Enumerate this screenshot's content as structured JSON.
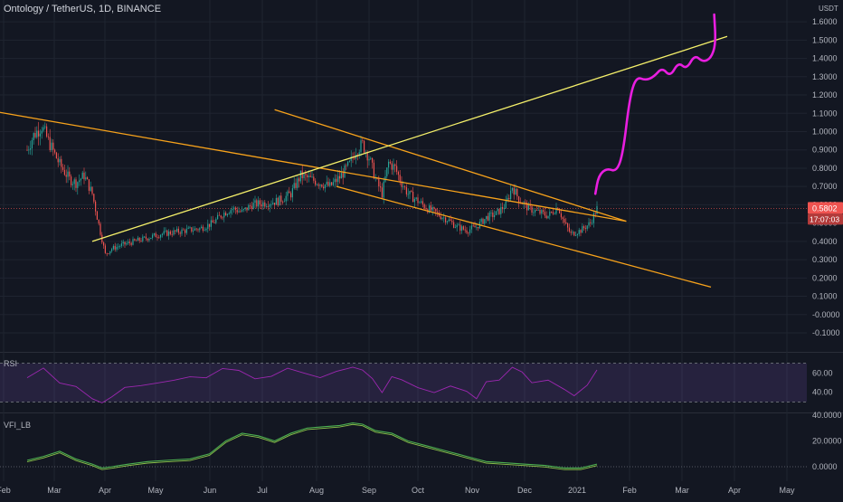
{
  "title": "Ontology / TetherUS, 1D, BINANCE",
  "currency": "USDT",
  "colors": {
    "background": "#131722",
    "grid": "#1f2430",
    "up_candle": "#26a69a",
    "down_candle": "#ef5350",
    "trend_yellow": "#f5f06a",
    "trend_orange": "#f7a21b",
    "projection": "#e91ee0",
    "rsi_band": "#7e57c2",
    "rsi_line": "#9c27b0",
    "vfi_line": "#4caf50",
    "vfi_signal": "#8bc34a",
    "price_badge": "#ef5350"
  },
  "price_badge": {
    "value": "0.5802",
    "countdown": "17:07:03"
  },
  "indicators": {
    "rsi_label": "RSI",
    "vfi_label": "VFI_LB"
  },
  "chart_data": [
    {
      "type": "candlestick",
      "x_axis_labels": [
        "Feb",
        "Mar",
        "Apr",
        "May",
        "Jun",
        "Jul",
        "Aug",
        "Sep",
        "Oct",
        "Nov",
        "Dec",
        "2021",
        "Feb",
        "Mar",
        "Apr",
        "May"
      ],
      "y_ticks": [
        "-0.1000",
        "-0.0000",
        "0.1000",
        "0.2000",
        "0.3000",
        "0.4000",
        "0.5000",
        "0.6000",
        "0.7000",
        "0.8000",
        "0.9000",
        "1.0000",
        "1.1000",
        "1.2000",
        "1.3000",
        "1.4000",
        "1.5000",
        "1.6000"
      ],
      "ylim": [
        -0.1,
        1.65
      ],
      "price_path": [
        [
          0,
          0.9
        ],
        [
          4,
          0.98
        ],
        [
          9,
          1.03
        ],
        [
          14,
          0.93
        ],
        [
          20,
          0.82
        ],
        [
          26,
          0.74
        ],
        [
          30,
          0.72
        ],
        [
          35,
          0.76
        ],
        [
          40,
          0.66
        ],
        [
          45,
          0.45
        ],
        [
          48,
          0.33
        ],
        [
          52,
          0.36
        ],
        [
          58,
          0.38
        ],
        [
          66,
          0.4
        ],
        [
          74,
          0.42
        ],
        [
          82,
          0.44
        ],
        [
          90,
          0.45
        ],
        [
          98,
          0.46
        ],
        [
          106,
          0.47
        ],
        [
          114,
          0.5
        ],
        [
          120,
          0.55
        ],
        [
          126,
          0.58
        ],
        [
          132,
          0.56
        ],
        [
          138,
          0.6
        ],
        [
          146,
          0.61
        ],
        [
          154,
          0.62
        ],
        [
          162,
          0.66
        ],
        [
          168,
          0.76
        ],
        [
          174,
          0.74
        ],
        [
          180,
          0.72
        ],
        [
          186,
          0.7
        ],
        [
          192,
          0.75
        ],
        [
          198,
          0.82
        ],
        [
          202,
          0.9
        ],
        [
          206,
          0.93
        ],
        [
          210,
          0.86
        ],
        [
          214,
          0.74
        ],
        [
          218,
          0.66
        ],
        [
          222,
          0.83
        ],
        [
          226,
          0.8
        ],
        [
          230,
          0.72
        ],
        [
          234,
          0.66
        ],
        [
          240,
          0.62
        ],
        [
          246,
          0.58
        ],
        [
          252,
          0.55
        ],
        [
          258,
          0.52
        ],
        [
          264,
          0.48
        ],
        [
          270,
          0.46
        ],
        [
          276,
          0.48
        ],
        [
          282,
          0.53
        ],
        [
          288,
          0.55
        ],
        [
          294,
          0.6
        ],
        [
          298,
          0.7
        ],
        [
          302,
          0.63
        ],
        [
          308,
          0.58
        ],
        [
          314,
          0.56
        ],
        [
          320,
          0.54
        ],
        [
          326,
          0.59
        ],
        [
          330,
          0.5
        ],
        [
          334,
          0.44
        ],
        [
          340,
          0.46
        ],
        [
          346,
          0.5
        ],
        [
          350,
          0.58
        ]
      ],
      "trend_lines": [
        {
          "name": "descending-upper",
          "color": "orange",
          "points": [
            [
              -20,
              1.11
            ],
            [
              368,
              0.51
            ]
          ]
        },
        {
          "name": "descending-upper-2",
          "color": "orange",
          "points": [
            [
              152,
              1.12
            ],
            [
              368,
              0.51
            ]
          ]
        },
        {
          "name": "descending-lower",
          "color": "orange",
          "points": [
            [
              190,
              0.7
            ],
            [
              420,
              0.15
            ]
          ]
        },
        {
          "name": "ascending",
          "color": "yellow",
          "points": [
            [
              40,
              0.4
            ],
            [
              430,
              1.52
            ]
          ]
        }
      ],
      "projection_path": [
        [
          349,
          0.66
        ],
        [
          351,
          0.76
        ],
        [
          356,
          0.8
        ],
        [
          362,
          0.78
        ],
        [
          366,
          0.88
        ],
        [
          370,
          1.18
        ],
        [
          374,
          1.3
        ],
        [
          380,
          1.28
        ],
        [
          385,
          1.3
        ],
        [
          390,
          1.35
        ],
        [
          395,
          1.3
        ],
        [
          400,
          1.38
        ],
        [
          405,
          1.34
        ],
        [
          410,
          1.42
        ],
        [
          415,
          1.38
        ],
        [
          420,
          1.4
        ],
        [
          423,
          1.48
        ],
        [
          422,
          1.64
        ]
      ]
    },
    {
      "type": "line",
      "name": "RSI",
      "y_ticks": [
        "40.00",
        "60.00"
      ],
      "ylim": [
        20,
        80
      ],
      "band": [
        30,
        70
      ],
      "points": [
        [
          0,
          55
        ],
        [
          10,
          68
        ],
        [
          20,
          48
        ],
        [
          30,
          44
        ],
        [
          40,
          36
        ],
        [
          46,
          28
        ],
        [
          52,
          34
        ],
        [
          60,
          42
        ],
        [
          70,
          48
        ],
        [
          80,
          52
        ],
        [
          90,
          50
        ],
        [
          100,
          55
        ],
        [
          110,
          58
        ],
        [
          120,
          64
        ],
        [
          130,
          60
        ],
        [
          140,
          56
        ],
        [
          150,
          58
        ],
        [
          160,
          62
        ],
        [
          170,
          60
        ],
        [
          180,
          58
        ],
        [
          190,
          60
        ],
        [
          200,
          64
        ],
        [
          206,
          66
        ],
        [
          212,
          52
        ],
        [
          218,
          40
        ],
        [
          224,
          58
        ],
        [
          230,
          50
        ],
        [
          240,
          46
        ],
        [
          250,
          42
        ],
        [
          260,
          44
        ],
        [
          270,
          40
        ],
        [
          276,
          36
        ],
        [
          282,
          48
        ],
        [
          290,
          52
        ],
        [
          298,
          68
        ],
        [
          304,
          58
        ],
        [
          310,
          52
        ],
        [
          320,
          54
        ],
        [
          330,
          40
        ],
        [
          336,
          38
        ],
        [
          344,
          46
        ],
        [
          350,
          66
        ]
      ]
    },
    {
      "type": "line",
      "name": "VFI_LB",
      "y_ticks": [
        "40.0000",
        "20.0000",
        "0.0000"
      ],
      "ylim": [
        -4,
        42
      ],
      "zero_line": 0,
      "points": [
        [
          0,
          5
        ],
        [
          10,
          8
        ],
        [
          20,
          12
        ],
        [
          30,
          6
        ],
        [
          40,
          2
        ],
        [
          46,
          -1
        ],
        [
          52,
          0
        ],
        [
          62,
          2
        ],
        [
          74,
          4
        ],
        [
          86,
          5
        ],
        [
          100,
          6
        ],
        [
          112,
          10
        ],
        [
          122,
          20
        ],
        [
          132,
          26
        ],
        [
          142,
          24
        ],
        [
          152,
          20
        ],
        [
          162,
          26
        ],
        [
          172,
          30
        ],
        [
          182,
          31
        ],
        [
          192,
          32
        ],
        [
          200,
          34
        ],
        [
          206,
          33
        ],
        [
          214,
          28
        ],
        [
          224,
          26
        ],
        [
          234,
          20
        ],
        [
          246,
          16
        ],
        [
          258,
          12
        ],
        [
          270,
          8
        ],
        [
          282,
          4
        ],
        [
          294,
          3
        ],
        [
          306,
          2
        ],
        [
          318,
          1
        ],
        [
          330,
          -1
        ],
        [
          340,
          -1
        ],
        [
          350,
          2
        ]
      ]
    }
  ]
}
